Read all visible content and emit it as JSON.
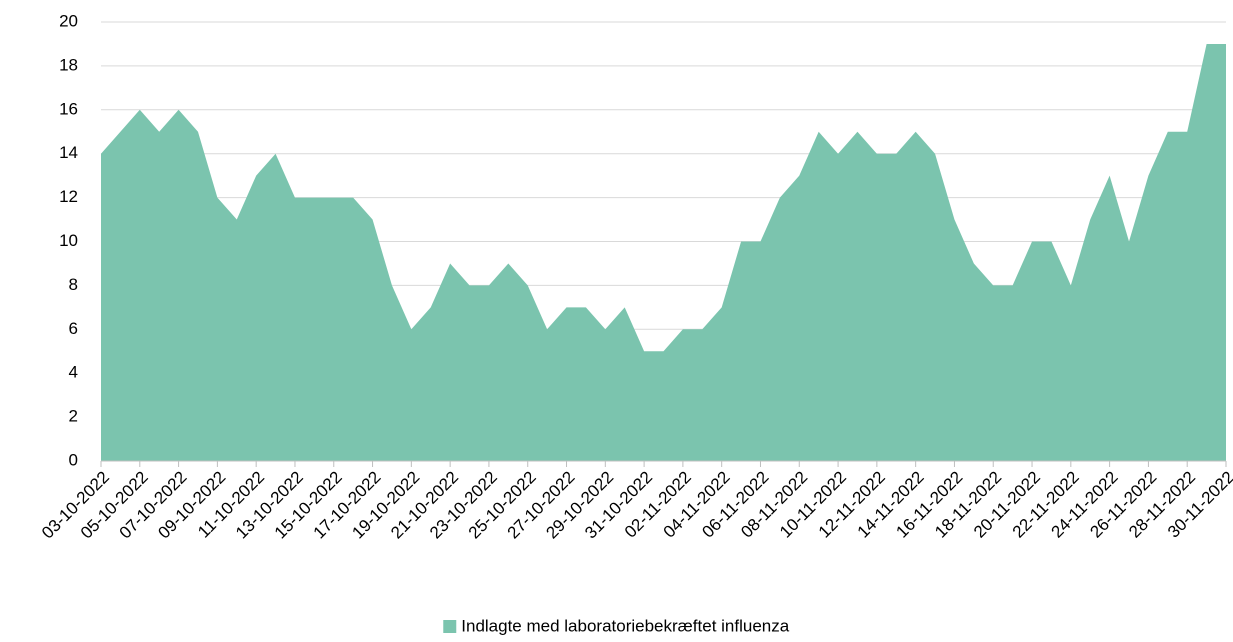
{
  "chart_data": {
    "type": "area",
    "categories": [
      "03-10-2022",
      null,
      "05-10-2022",
      null,
      "07-10-2022",
      null,
      "09-10-2022",
      null,
      "11-10-2022",
      null,
      "13-10-2022",
      null,
      "15-10-2022",
      null,
      "17-10-2022",
      null,
      "19-10-2022",
      null,
      "21-10-2022",
      null,
      "23-10-2022",
      null,
      "25-10-2022",
      null,
      "27-10-2022",
      null,
      "29-10-2022",
      null,
      "31-10-2022",
      null,
      "02-11-2022",
      null,
      "04-11-2022",
      null,
      "06-11-2022",
      null,
      "08-11-2022",
      null,
      "10-11-2022",
      null,
      "12-11-2022",
      null,
      "14-11-2022",
      null,
      "16-11-2022",
      null,
      "18-11-2022",
      null,
      "20-11-2022",
      null,
      "22-11-2022",
      null,
      "24-11-2022",
      null,
      "26-11-2022",
      null,
      "28-11-2022",
      null,
      "30-11-2022"
    ],
    "series": [
      {
        "name": "Indlagte med laboratoriebekræftet influenza",
        "color": "#7bc4ae",
        "values": [
          14,
          15,
          16,
          15,
          16,
          15,
          12,
          11,
          13,
          14,
          12,
          12,
          12,
          12,
          11,
          8,
          6,
          7,
          9,
          8,
          8,
          9,
          8,
          6,
          7,
          7,
          6,
          7,
          5,
          5,
          6,
          6,
          7,
          10,
          10,
          12,
          13,
          15,
          14,
          15,
          14,
          14,
          15,
          14,
          11,
          9,
          8,
          8,
          10,
          10,
          8,
          11,
          13,
          10,
          13,
          15,
          15,
          19,
          19
        ]
      }
    ],
    "ylim": [
      0,
      20
    ],
    "yticks": [
      0,
      2,
      4,
      6,
      8,
      10,
      12,
      14,
      16,
      18,
      20
    ],
    "grid": true,
    "legend": "bottom"
  }
}
